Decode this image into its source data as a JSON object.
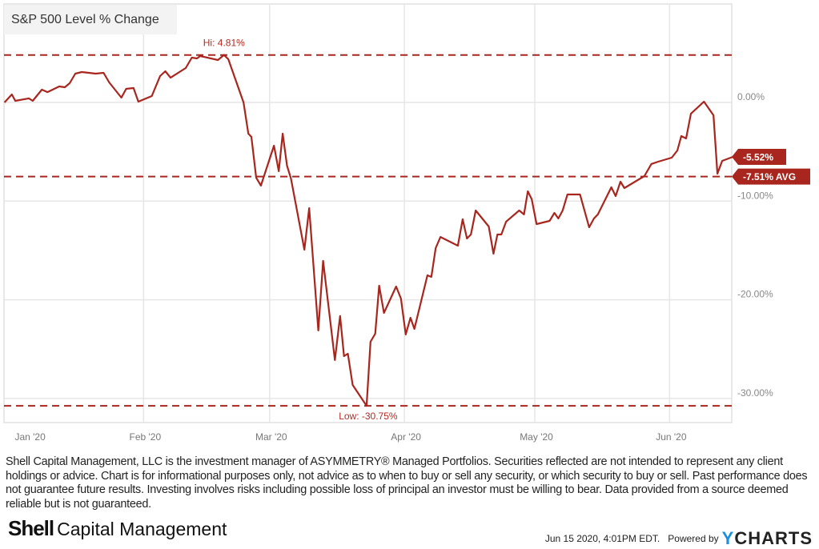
{
  "colors": {
    "line": "#a8261d",
    "tag": "#a8261d",
    "grid": "#e6e6e6",
    "ycharts_y": "#1c8fe0"
  },
  "chart_data": {
    "type": "line",
    "title": "S&P 500 Level % Change",
    "x_unit": "days since Jan 1 2020",
    "xlim": [
      -1,
      166.5
    ],
    "ylim": [
      -32.5,
      9.5
    ],
    "grid": true,
    "y_ticks": [
      {
        "value": 0,
        "label": "0.00%"
      },
      {
        "value": -10,
        "label": "-10.00%"
      },
      {
        "value": -20,
        "label": "-20.00%"
      },
      {
        "value": -30,
        "label": "-30.00%"
      }
    ],
    "x_ticks": [
      {
        "value": 4.9,
        "label": "Jan '20",
        "grid": false
      },
      {
        "value": 31,
        "label": "Feb '20",
        "grid": true
      },
      {
        "value": 60,
        "label": "Mar '20",
        "grid": true
      },
      {
        "value": 91,
        "label": "Apr '20",
        "grid": true
      },
      {
        "value": 121,
        "label": "May '20",
        "grid": true
      },
      {
        "value": 152,
        "label": "Jun '20",
        "grid": true
      }
    ],
    "series": [
      {
        "name": "S&P 500 Level % Change",
        "x": [
          -1,
          0.7,
          1.5,
          4.6,
          5.5,
          7.6,
          8.9,
          11.6,
          12.9,
          14,
          15.3,
          16.8,
          20,
          21.8,
          23.1,
          25.9,
          27,
          28.7,
          29.8,
          32.9,
          34.8,
          36,
          37.2,
          40.7,
          42.1,
          43.3,
          44,
          48.1,
          49.5,
          50.5,
          54,
          55.1,
          55.8,
          56.9,
          58,
          61,
          62.1,
          63,
          64,
          64.9,
          68,
          69.1,
          71.2,
          72.3,
          75,
          76.2,
          77.1,
          78,
          79.1,
          82.3,
          83.2,
          84.3,
          85.2,
          86.3,
          89.1,
          90.2,
          91.3,
          92.4,
          93.3,
          96.3,
          97.2,
          98.2,
          99.3,
          103.3,
          104.4,
          105.4,
          106.3,
          107.4,
          110.4,
          111.5,
          112.4,
          113.3,
          114.4,
          117.4,
          118.5,
          119.4,
          120.3,
          121.4,
          124.4,
          125.5,
          126.4,
          127.4,
          128.5,
          131.4,
          133.5,
          134.6,
          135.5,
          138.6,
          139.6,
          140.7,
          141.6,
          146.2,
          147.8,
          149.4,
          152.5,
          153.8,
          154.7,
          155.8,
          156.9,
          159.9,
          162.1,
          163,
          164.1,
          166.5
        ],
        "values": [
          0,
          0.81,
          0.16,
          0.41,
          0.16,
          1.3,
          1.05,
          1.62,
          1.54,
          1.95,
          2.92,
          3.08,
          2.92,
          3.0,
          2.03,
          0.49,
          1.38,
          1.46,
          0.08,
          0.65,
          2.68,
          3.16,
          2.51,
          3.49,
          4.54,
          4.46,
          4.7,
          4.3,
          4.81,
          4.38,
          0,
          -3.16,
          -3.49,
          -7.62,
          -8.43,
          -4.38,
          -6.97,
          -3.16,
          -6.41,
          -7.7,
          -14.92,
          -10.71,
          -23.11,
          -16.06,
          -26.11,
          -21.65,
          -25.71,
          -25.47,
          -28.63,
          -30.75,
          -24.25,
          -23.44,
          -18.57,
          -21.33,
          -18.65,
          -19.87,
          -23.52,
          -21.82,
          -22.95,
          -17.52,
          -17.68,
          -14.76,
          -13.63,
          -14.52,
          -11.84,
          -13.79,
          -13.38,
          -10.95,
          -12.57,
          -15.33,
          -13.38,
          -13.38,
          -12.08,
          -10.95,
          -11.35,
          -9.0,
          -9.81,
          -12.33,
          -12.0,
          -11.19,
          -11.76,
          -10.95,
          -9.33,
          -9.33,
          -12.65,
          -11.76,
          -11.35,
          -8.6,
          -9.49,
          -8.03,
          -8.68,
          -7.46,
          -6.24,
          -6.0,
          -5.6,
          -4.87,
          -3.41,
          -3.65,
          -1.14,
          0.08,
          -1.3,
          -7.22,
          -5.92,
          -5.52
        ]
      }
    ],
    "reference_lines": [
      {
        "value": 4.81,
        "label": "Hi: 4.81%",
        "at_x": 49.5
      },
      {
        "value": -30.75,
        "label": "Low: -30.75%",
        "at_x": 82.3
      },
      {
        "value": -7.51,
        "label": "-7.51% AVG"
      }
    ],
    "last_value": {
      "value": -5.52,
      "label": "-5.52%"
    }
  },
  "disclaimer": "Shell Capital Management, LLC is the investment manager of ASYMMETRY® Managed Portfolios. Securities reflected are not intended to represent any client holdings or advice. Chart is for informational purposes only, not advice as to when to buy or sell any security, or which security to buy or sell. Past performance does not guarantee future results. Investing involves risks including possible loss of principal an investor must be willing to bear. Data provided from a source deemed reliable but is not guaranteed.",
  "logo": {
    "bold": "Shell",
    "rest": "Capital Management"
  },
  "footer": {
    "timestamp": "Jun 15 2020, 4:01PM EDT.",
    "powered_by": "Powered by",
    "brand_y": "Y",
    "brand_rest": "CHARTS"
  }
}
